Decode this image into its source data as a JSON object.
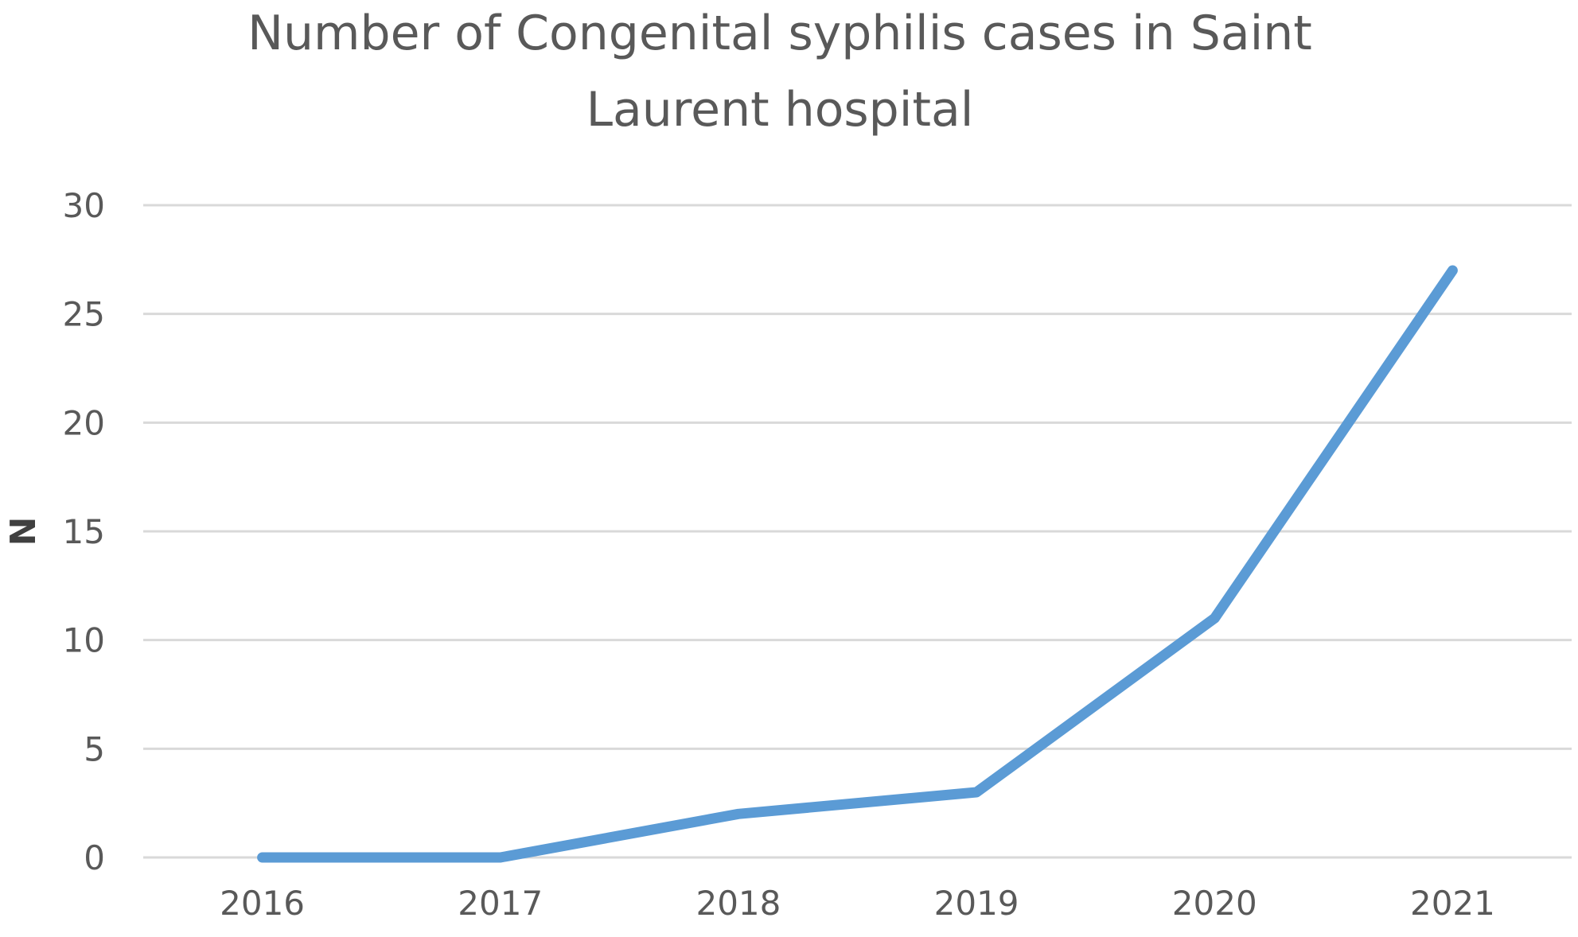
{
  "chart_data": {
    "type": "line",
    "title_lines": [
      "Number of Congenital syphilis cases in Saint",
      "Laurent hospital"
    ],
    "xlabel": "",
    "ylabel": "N",
    "categories": [
      "2016",
      "2017",
      "2018",
      "2019",
      "2020",
      "2021"
    ],
    "series": [
      {
        "values": [
          0,
          0,
          2,
          3,
          11,
          27
        ]
      }
    ],
    "ylim": [
      0,
      30
    ],
    "yticks": [
      0,
      5,
      10,
      15,
      20,
      25,
      30
    ],
    "grid": true,
    "legend": "none",
    "colors": {
      "line": "#5B9BD5",
      "grid": "#D9D9D9",
      "text": "#595959"
    }
  }
}
